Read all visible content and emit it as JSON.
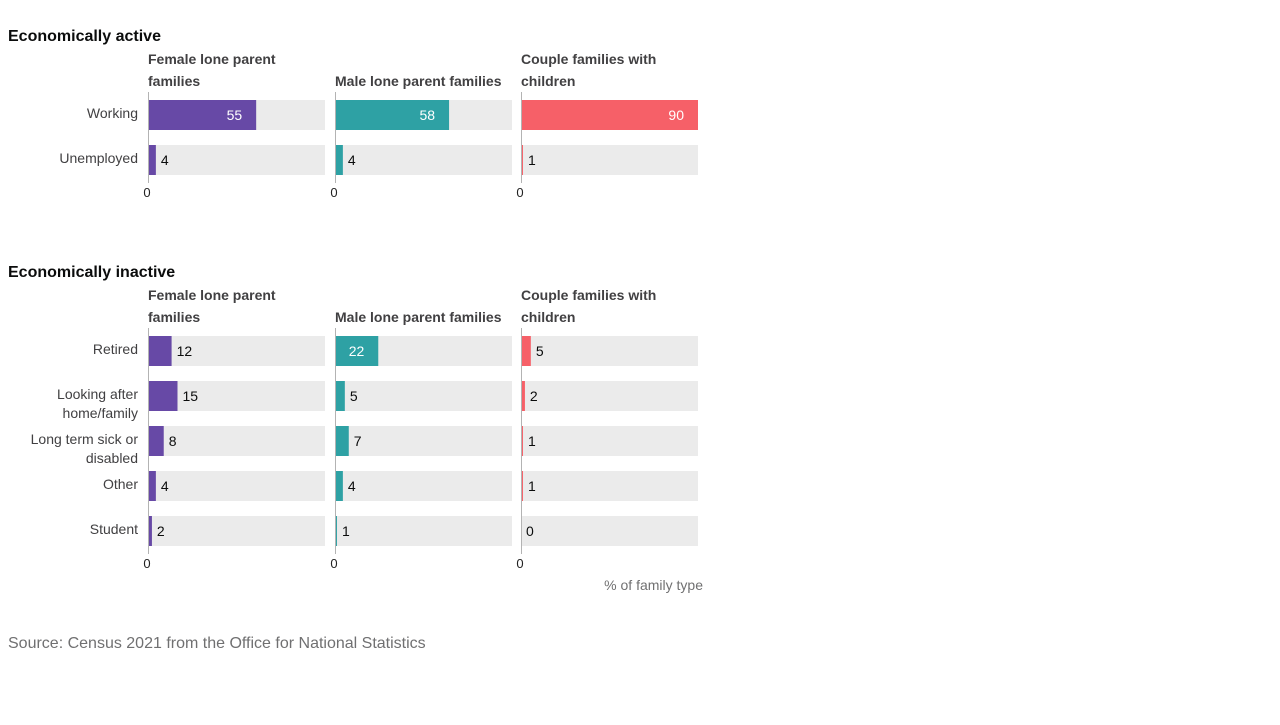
{
  "chart_data": {
    "type": "bar",
    "orientation": "horizontal",
    "axis_title": "% of family type",
    "source": "Source: Census 2021 from the Office for National Statistics",
    "xlim": [
      0,
      90
    ],
    "tick_label": "0",
    "panels": [
      {
        "name": "Female lone parent families",
        "color": "#6749a6"
      },
      {
        "name": "Male lone parent families",
        "color": "#2ea1a4"
      },
      {
        "name": "Couple families with children",
        "color": "#f66068"
      }
    ],
    "sections": [
      {
        "title": "Economically active",
        "categories": [
          "Working",
          "Unemployed"
        ],
        "series": [
          {
            "name": "Female lone parent families",
            "values": [
              55,
              4
            ]
          },
          {
            "name": "Male lone parent families",
            "values": [
              58,
              4
            ]
          },
          {
            "name": "Couple families with children",
            "values": [
              90,
              1
            ]
          }
        ]
      },
      {
        "title": "Economically inactive",
        "categories": [
          "Retired",
          "Looking after home/family",
          "Long term sick or disabled",
          "Other",
          "Student"
        ],
        "series": [
          {
            "name": "Female lone parent families",
            "values": [
              12,
              15,
              8,
              4,
              2
            ]
          },
          {
            "name": "Male lone parent families",
            "values": [
              22,
              5,
              7,
              4,
              1
            ]
          },
          {
            "name": "Couple families with children",
            "values": [
              5,
              2,
              1,
              1,
              0
            ]
          }
        ]
      }
    ]
  }
}
